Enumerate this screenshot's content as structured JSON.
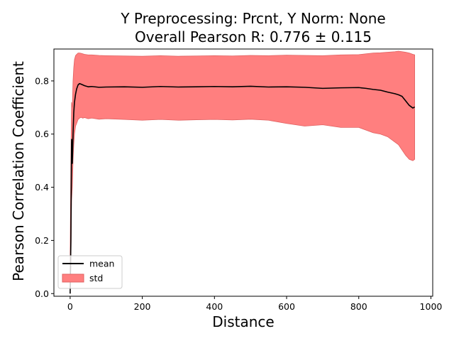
{
  "chart_data": {
    "type": "line",
    "title_line1": "Y Preprocessing: Prcnt, Y Norm: None",
    "title_line2": "Overall Pearson R: 0.776 ± 0.115",
    "xlabel": "Distance",
    "ylabel": "Pearson Correlation Coefficient",
    "xlim": [
      -45,
      1005
    ],
    "ylim": [
      -0.01,
      0.92
    ],
    "xticks": [
      0,
      200,
      400,
      600,
      800,
      1000
    ],
    "xtick_labels": [
      "0",
      "200",
      "400",
      "600",
      "800",
      "1000"
    ],
    "yticks": [
      0.0,
      0.2,
      0.4,
      0.6,
      0.8
    ],
    "ytick_labels": [
      "0.0",
      "0.2",
      "0.4",
      "0.6",
      "0.8"
    ],
    "grid": false,
    "legend_position": "bottom-left",
    "legend": {
      "mean_label": "mean",
      "std_label": "std"
    },
    "colors": {
      "mean": "#000000",
      "std_fill": "#ff7f7f",
      "std_edge": "#e06060"
    },
    "series": [
      {
        "name": "mean",
        "x": [
          0,
          2,
          4,
          6,
          8,
          10,
          12,
          15,
          18,
          22,
          26,
          30,
          35,
          40,
          50,
          60,
          80,
          100,
          150,
          200,
          250,
          300,
          350,
          400,
          450,
          500,
          550,
          600,
          650,
          700,
          750,
          800,
          820,
          840,
          860,
          880,
          900,
          910,
          920,
          930,
          940,
          950,
          955
        ],
        "values": [
          0.0,
          0.2,
          0.58,
          0.49,
          0.6,
          0.68,
          0.72,
          0.75,
          0.77,
          0.785,
          0.79,
          0.788,
          0.785,
          0.782,
          0.778,
          0.779,
          0.776,
          0.777,
          0.778,
          0.776,
          0.779,
          0.777,
          0.778,
          0.779,
          0.778,
          0.78,
          0.777,
          0.778,
          0.776,
          0.772,
          0.774,
          0.775,
          0.772,
          0.768,
          0.765,
          0.758,
          0.752,
          0.748,
          0.742,
          0.725,
          0.708,
          0.698,
          0.702
        ]
      },
      {
        "name": "std",
        "x": [
          0,
          2,
          4,
          6,
          8,
          10,
          12,
          15,
          18,
          22,
          26,
          30,
          35,
          40,
          50,
          60,
          80,
          100,
          150,
          200,
          250,
          300,
          350,
          400,
          450,
          500,
          550,
          600,
          650,
          700,
          750,
          800,
          820,
          840,
          860,
          880,
          900,
          910,
          920,
          930,
          940,
          950,
          955
        ],
        "upper": [
          0.15,
          0.5,
          0.72,
          0.7,
          0.8,
          0.85,
          0.88,
          0.895,
          0.9,
          0.905,
          0.905,
          0.904,
          0.902,
          0.9,
          0.898,
          0.898,
          0.896,
          0.895,
          0.894,
          0.893,
          0.895,
          0.893,
          0.894,
          0.895,
          0.894,
          0.896,
          0.895,
          0.897,
          0.896,
          0.895,
          0.898,
          0.899,
          0.902,
          0.905,
          0.906,
          0.908,
          0.91,
          0.912,
          0.91,
          0.908,
          0.905,
          0.9,
          0.898
        ],
        "lower": [
          0.0,
          0.1,
          0.35,
          0.4,
          0.5,
          0.56,
          0.6,
          0.63,
          0.64,
          0.655,
          0.66,
          0.663,
          0.66,
          0.662,
          0.658,
          0.66,
          0.656,
          0.658,
          0.655,
          0.652,
          0.655,
          0.652,
          0.654,
          0.655,
          0.653,
          0.656,
          0.652,
          0.64,
          0.63,
          0.635,
          0.625,
          0.625,
          0.615,
          0.605,
          0.6,
          0.59,
          0.57,
          0.56,
          0.54,
          0.52,
          0.505,
          0.5,
          0.505
        ]
      }
    ]
  }
}
